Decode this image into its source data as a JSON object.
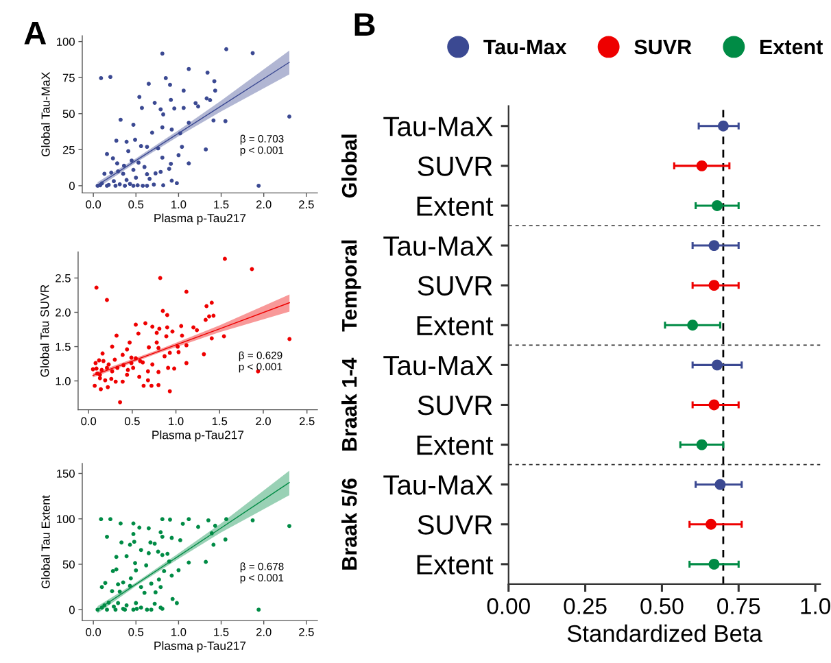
{
  "chart_data": [
    {
      "type": "scatter",
      "title": "A",
      "xlabel": "Plasma p-Tau217",
      "ylabel": "Global Tau-MaX",
      "marker": "circle",
      "xlim": [
        -0.13,
        2.63
      ],
      "ylim": [
        -5,
        104
      ],
      "xticks": [
        {
          "value": 0.0,
          "label": "0.0"
        },
        {
          "value": 0.5,
          "label": "0.5"
        },
        {
          "value": 1.0,
          "label": "1.0"
        },
        {
          "value": 1.5,
          "label": "1.5"
        },
        {
          "value": 2.0,
          "label": "2.0"
        },
        {
          "value": 2.5,
          "label": "2.5"
        }
      ],
      "yticks": [
        0,
        25,
        50,
        75,
        100
      ],
      "annotations": [
        "β = 0.703",
        "p < 0.001"
      ],
      "series": [
        {
          "color": "#3b4992",
          "x": [
            0.09,
            0.2,
            0.81,
            1.56,
            1.87,
            2.3,
            1.94,
            1.12,
            1.34,
            1.42,
            1.43,
            1.06,
            0.65,
            0.85,
            0.9,
            0.54,
            0.91,
            0.57,
            0.72,
            0.79,
            0.82,
            0.95,
            1.06,
            1.2,
            1.23,
            1.33,
            1.37,
            1.41,
            1.55,
            1.12,
            1.02,
            0.92,
            0.81,
            0.32,
            0.47,
            0.69,
            0.27,
            0.49,
            0.39,
            1.32,
            1.04,
            1.0,
            1.12,
            0.91,
            0.89,
            0.92,
            0.98,
            0.81,
            0.76,
            0.63,
            0.56,
            0.41,
            0.16,
            0.23,
            0.28,
            0.36,
            0.45,
            0.53,
            0.6,
            0.47,
            0.29,
            0.13,
            0.21,
            0.35,
            0.63,
            0.73,
            0.79,
            0.5,
            0.66,
            0.39,
            0.24,
            0.1,
            0.05,
            0.16,
            0.26,
            0.37,
            0.47,
            0.58,
            0.63,
            0.71,
            0.82,
            0.18,
            0.31,
            0.43,
            0.08,
            0.52
          ],
          "values": [
            74.7,
            75.5,
            91.7,
            94.7,
            92,
            48,
            0,
            81,
            78.5,
            72.5,
            66,
            66,
            70.7,
            74.7,
            70,
            61.6,
            59.6,
            54,
            57.5,
            53,
            49.5,
            53.6,
            54,
            57.3,
            55,
            60.6,
            59.4,
            45.3,
            44.8,
            43.7,
            36.4,
            39,
            40.5,
            45.8,
            42.3,
            36.8,
            31.3,
            31.9,
            30.5,
            25.2,
            27,
            21.2,
            15.5,
            15.2,
            11.7,
            3.5,
            1.8,
            19.5,
            25.9,
            27,
            27.5,
            24,
            22,
            19,
            15.5,
            13.9,
            17.5,
            16,
            13,
            11,
            10,
            8.3,
            9.1,
            8.3,
            8,
            8.6,
            9.6,
            5.6,
            4.8,
            4,
            3.2,
            1.6,
            0,
            0,
            0,
            0,
            0,
            0,
            0,
            0.8,
            0.3,
            0.6,
            1,
            1.3,
            0.3,
            0.3
          ]
        },
        {
          "type": "line",
          "marker": "none",
          "color": "#3b4992",
          "x": [
            0.05,
            0.5,
            1.0,
            1.5,
            2.3
          ],
          "values": [
            0.5,
            17.5,
            36.4,
            55.3,
            85.6
          ],
          "lower": [
            -1.5,
            16,
            34.3,
            51.5,
            77.2
          ],
          "upper": [
            2.5,
            19,
            38.5,
            59,
            93.8
          ]
        }
      ]
    },
    {
      "type": "scatter",
      "xlabel": "Plasma p-Tau217",
      "ylabel": "Global Tau SUVR",
      "marker": "circle",
      "xlim": [
        -0.12,
        2.62
      ],
      "ylim": [
        0.58,
        2.88
      ],
      "xticks": [
        {
          "value": 0.0,
          "label": "0.0"
        },
        {
          "value": 0.5,
          "label": "0.5"
        },
        {
          "value": 1.0,
          "label": "1.0"
        },
        {
          "value": 1.5,
          "label": "1.5"
        },
        {
          "value": 2.0,
          "label": "2.0"
        },
        {
          "value": 2.5,
          "label": "2.5"
        }
      ],
      "yticks": [
        {
          "value": 1.0,
          "label": "1.0"
        },
        {
          "value": 1.5,
          "label": "1.5"
        },
        {
          "value": 2.0,
          "label": "2.0"
        },
        {
          "value": 2.5,
          "label": "2.5"
        }
      ],
      "annotations": [
        "β = 0.629",
        "p < 0.001"
      ],
      "series": [
        {
          "color": "#ee0000",
          "x": [
            0.09,
            0.21,
            0.82,
            1.56,
            1.87,
            2.3,
            1.94,
            1.12,
            1.35,
            1.41,
            1.43,
            1.38,
            1.34,
            1.41,
            1.55,
            1.32,
            1.2,
            1.24,
            1.06,
            1.07,
            1.12,
            1.12,
            1.02,
            1.03,
            0.85,
            0.9,
            0.9,
            0.96,
            0.89,
            0.81,
            0.78,
            0.73,
            0.65,
            0.54,
            0.57,
            0.32,
            0.47,
            0.27,
            0.16,
            0.69,
            0.78,
            0.8,
            0.93,
            0.91,
            0.98,
            0.87,
            0.8,
            0.73,
            0.62,
            0.68,
            0.63,
            0.72,
            0.8,
            0.93,
            0.68,
            0.58,
            0.36,
            0.22,
            0.14,
            0.07,
            0.05,
            0.08,
            0.12,
            0.17,
            0.23,
            0.3,
            0.39,
            0.44,
            0.49,
            0.54,
            0.59,
            0.51,
            0.44,
            0.39,
            0.31,
            0.26,
            0.19,
            0.13,
            0.1,
            0.15,
            0.21,
            0.27,
            0.33,
            0.4,
            0.45,
            0.49,
            0.09,
            0.13
          ],
          "values": [
            2.36,
            2.18,
            2.5,
            2.78,
            2.63,
            1.61,
            1.14,
            2.3,
            2.09,
            2.14,
            1.95,
            1.94,
            1.89,
            1.62,
            1.65,
            1.39,
            1.78,
            1.74,
            1.8,
            1.66,
            1.52,
            1.26,
            1.5,
            1.42,
            2.02,
            1.96,
            1.78,
            1.72,
            1.65,
            1.76,
            1.7,
            1.79,
            1.84,
            1.82,
            1.69,
            1.66,
            1.56,
            1.5,
            1.4,
            1.49,
            1.56,
            1.48,
            1.41,
            1.19,
            1.18,
            1.36,
            1.13,
            1.24,
            1.27,
            1.14,
            0.93,
            0.93,
            0.94,
            0.85,
            1.01,
            1.06,
            0.69,
            0.91,
            0.88,
            0.93,
            1.17,
            1.26,
            1.3,
            1.29,
            1.24,
            1.31,
            1.38,
            1.46,
            1.34,
            1.33,
            1.29,
            1.19,
            1.09,
            0.99,
            0.99,
            1.03,
            1.01,
            1.04,
            1.11,
            1.16,
            1.19,
            1.14,
            1.19,
            1.23,
            1.16,
            1.26,
            1.18,
            1.09
          ]
        },
        {
          "type": "line",
          "marker": "none",
          "color": "#ee0000",
          "x": [
            0.05,
            0.8,
            1.5,
            2.3
          ],
          "values": [
            1.08,
            1.43,
            1.76,
            2.14
          ],
          "lower": [
            1.05,
            1.405,
            1.71,
            2.01
          ],
          "upper": [
            1.11,
            1.455,
            1.81,
            2.26
          ]
        }
      ]
    },
    {
      "type": "scatter",
      "xlabel": "Plasma p-Tau217",
      "ylabel": "Global Tau Extent",
      "marker": "circle",
      "xlim": [
        -0.13,
        2.63
      ],
      "ylim": [
        -12,
        161
      ],
      "xticks": [
        {
          "value": 0.0,
          "label": "0.0"
        },
        {
          "value": 0.5,
          "label": "0.5"
        },
        {
          "value": 1.0,
          "label": "1.0"
        },
        {
          "value": 1.5,
          "label": "1.5"
        },
        {
          "value": 2.0,
          "label": "2.0"
        },
        {
          "value": 2.5,
          "label": "2.5"
        }
      ],
      "yticks": [
        0,
        50,
        100,
        150
      ],
      "annotations": [
        "β = 0.678",
        "p < 0.001"
      ],
      "series": [
        {
          "color": "#008b45",
          "x": [
            0.09,
            0.2,
            0.16,
            0.32,
            0.47,
            0.54,
            0.65,
            0.81,
            0.9,
            1.05,
            1.12,
            1.35,
            1.56,
            1.87,
            2.3,
            1.94,
            1.23,
            1.43,
            1.39,
            1.41,
            1.55,
            1.32,
            1.12,
            1.02,
            0.92,
            0.79,
            0.81,
            0.67,
            0.47,
            0.48,
            0.43,
            0.33,
            0.72,
            0.76,
            0.81,
            0.87,
            0.65,
            0.56,
            0.39,
            0.27,
            0.49,
            0.62,
            0.89,
            1.0,
            0.83,
            0.5,
            0.27,
            0.23,
            0.92,
            0.77,
            0.68,
            0.73,
            0.79,
            0.44,
            0.35,
            0.29,
            0.1,
            0.14,
            0.22,
            0.31,
            0.43,
            0.56,
            0.6,
            0.72,
            0.93,
            0.98,
            0.79,
            0.81,
            0.63,
            0.68,
            0.56,
            0.5,
            0.39,
            0.29,
            0.18,
            0.13,
            0.05,
            0.16,
            0.26,
            0.37,
            0.47,
            0.1,
            0.24,
            0.35,
            0.51
          ],
          "values": [
            99.7,
            99.7,
            80.3,
            94.9,
            94.9,
            90.4,
            89.6,
            99.7,
            99.2,
            94.6,
            99.7,
            98.4,
            99.7,
            98.4,
            92.1,
            0,
            91.1,
            92.4,
            84.1,
            71.5,
            77.3,
            52.6,
            51.9,
            76.5,
            79,
            85.3,
            80.3,
            74,
            83.3,
            74.8,
            71.5,
            74,
            72.7,
            63.9,
            60.2,
            61.5,
            62.2,
            65.7,
            58.9,
            58.1,
            51.3,
            48.8,
            53.1,
            43.5,
            42.5,
            43.3,
            44.3,
            42.5,
            37.5,
            33.2,
            28.7,
            19.1,
            24.9,
            34.5,
            30,
            27.9,
            24.9,
            29.4,
            20.4,
            19.9,
            26.2,
            24.9,
            18.6,
            6.5,
            11.8,
            7.3,
            2.3,
            1,
            0,
            0,
            2.3,
            7.3,
            4.8,
            7.3,
            7.8,
            4.8,
            0,
            0,
            0,
            0,
            0,
            2.3,
            3.5,
            1,
            1
          ]
        },
        {
          "type": "line",
          "marker": "none",
          "color": "#008b45",
          "x": [
            0.05,
            0.5,
            1.0,
            1.5,
            2.3
          ],
          "values": [
            0,
            28,
            59,
            90,
            140
          ],
          "lower": [
            -4,
            26,
            56,
            85,
            126
          ],
          "upper": [
            4,
            30,
            62,
            95,
            153
          ]
        }
      ]
    },
    {
      "type": "scatter",
      "orientation": "horizontal",
      "title": "B",
      "xlabel": "Standardized Beta",
      "marker": "circle",
      "legend": "top",
      "categories": [
        "Tau-MaX",
        "SUVR",
        "Extent",
        "Tau-MaX",
        "SUVR",
        "Extent",
        "Tau-MaX",
        "SUVR",
        "Extent",
        "Tau-MaX",
        "SUVR",
        "Extent"
      ],
      "xlim": [
        0,
        1.016
      ],
      "xticks": [
        {
          "value": 0,
          "label": "0.00"
        },
        {
          "value": 0.25,
          "label": "0.25"
        },
        {
          "value": 0.5,
          "label": "0.50"
        },
        {
          "value": 0.75,
          "label": "0.75"
        },
        {
          "value": 1.0,
          "label": "1.0"
        }
      ],
      "ref_lines": [
        {
          "axis": "x",
          "value": 0.7,
          "color": "#000000",
          "line_style": "dashed"
        }
      ],
      "annotations": [
        "Global",
        "Temporal",
        "Braak 1-4",
        "Braak 5/6"
      ],
      "series": [
        {
          "name": "Tau-Max",
          "color": "#3b4992",
          "values": [
            0.7,
            null,
            null,
            0.67,
            null,
            null,
            0.68,
            null,
            null,
            0.69,
            null,
            null
          ],
          "errors": [
            [
              0.62,
              0.75
            ],
            null,
            null,
            [
              0.6,
              0.75
            ],
            null,
            null,
            [
              0.6,
              0.76
            ],
            null,
            null,
            [
              0.61,
              0.76
            ],
            null,
            null
          ]
        },
        {
          "name": "SUVR",
          "color": "#ee0000",
          "values": [
            null,
            0.63,
            null,
            null,
            0.67,
            null,
            null,
            0.67,
            null,
            null,
            0.66,
            null
          ],
          "errors": [
            null,
            [
              0.54,
              0.72
            ],
            null,
            null,
            [
              0.6,
              0.75
            ],
            null,
            null,
            [
              0.6,
              0.75
            ],
            null,
            null,
            [
              0.59,
              0.76
            ],
            null
          ]
        },
        {
          "name": "Extent",
          "color": "#008b45",
          "values": [
            null,
            null,
            0.68,
            null,
            null,
            0.6,
            null,
            null,
            0.63,
            null,
            null,
            0.67
          ],
          "errors": [
            null,
            null,
            [
              0.61,
              0.75
            ],
            null,
            null,
            [
              0.51,
              0.69
            ],
            null,
            null,
            [
              0.56,
              0.7
            ],
            null,
            null,
            [
              0.59,
              0.75
            ]
          ]
        }
      ]
    }
  ]
}
